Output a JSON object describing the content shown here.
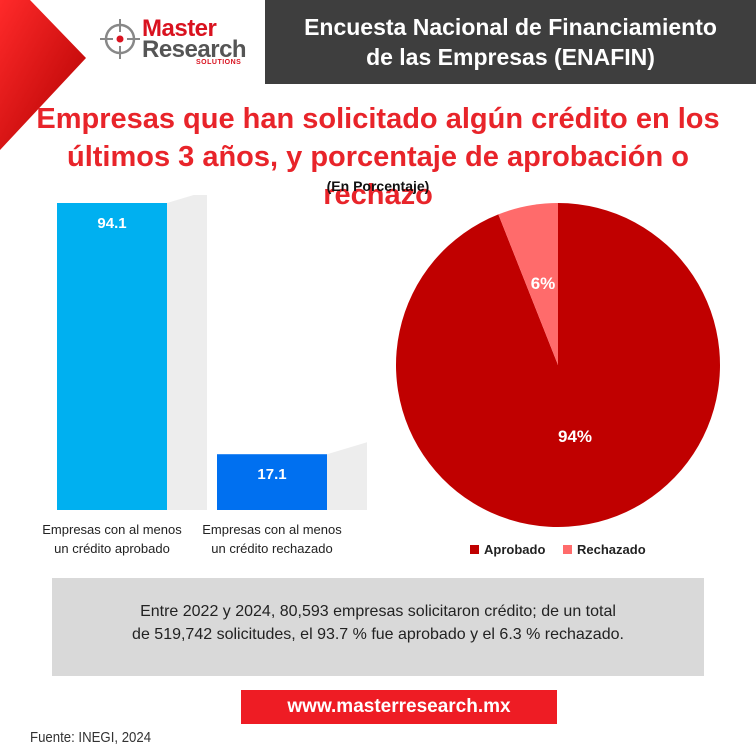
{
  "brand": {
    "logo_line1": "Master",
    "logo_line2": "Research",
    "logo_tagline": "SOLUTIONS",
    "website": "www.masterresearch.mx"
  },
  "header": {
    "line1": "Encuesta Nacional de Financiamiento",
    "line2": "de las Empresas (ENAFIN)"
  },
  "title": {
    "line1": "Empresas que han solicitado algún crédito en los",
    "line2": "últimos 3 años, y porcentaje de aprobación o rechazo",
    "unit": "(En Porcentaje)"
  },
  "colors": {
    "accent_red": "#e8242a",
    "bar_approved": "#00b0f0",
    "bar_rejected": "#0070f0",
    "pie_approved": "#c00000",
    "pie_rejected": "#ff6b6b"
  },
  "chart_data": [
    {
      "type": "bar",
      "categories": [
        "Empresas con al menos un crédito aprobado",
        "Empresas con al menos un crédito rechazado"
      ],
      "category_lines": [
        [
          "Empresas con al menos",
          "un crédito aprobado"
        ],
        [
          "Empresas con al menos",
          "un crédito rechazado"
        ]
      ],
      "values": [
        94.1,
        17.1
      ],
      "value_labels": [
        "94.1",
        "17.1"
      ],
      "colors": [
        "#00b0f0",
        "#0070f0"
      ],
      "ylim": [
        0,
        94.1
      ]
    },
    {
      "type": "pie",
      "labels": [
        "Aprobado",
        "Rechazado"
      ],
      "values": [
        94,
        6
      ],
      "value_labels": [
        "94%",
        "6%"
      ],
      "colors": [
        "#c00000",
        "#ff6b6b"
      ],
      "legend": "bottom"
    }
  ],
  "note": {
    "line1": "Entre 2022 y 2024, 80,593 empresas solicitaron crédito; de un total",
    "line2": "de 519,742 solicitudes, el 93.7 % fue aprobado y el 6.3 % rechazado."
  },
  "source": "Fuente: INEGI, 2024"
}
